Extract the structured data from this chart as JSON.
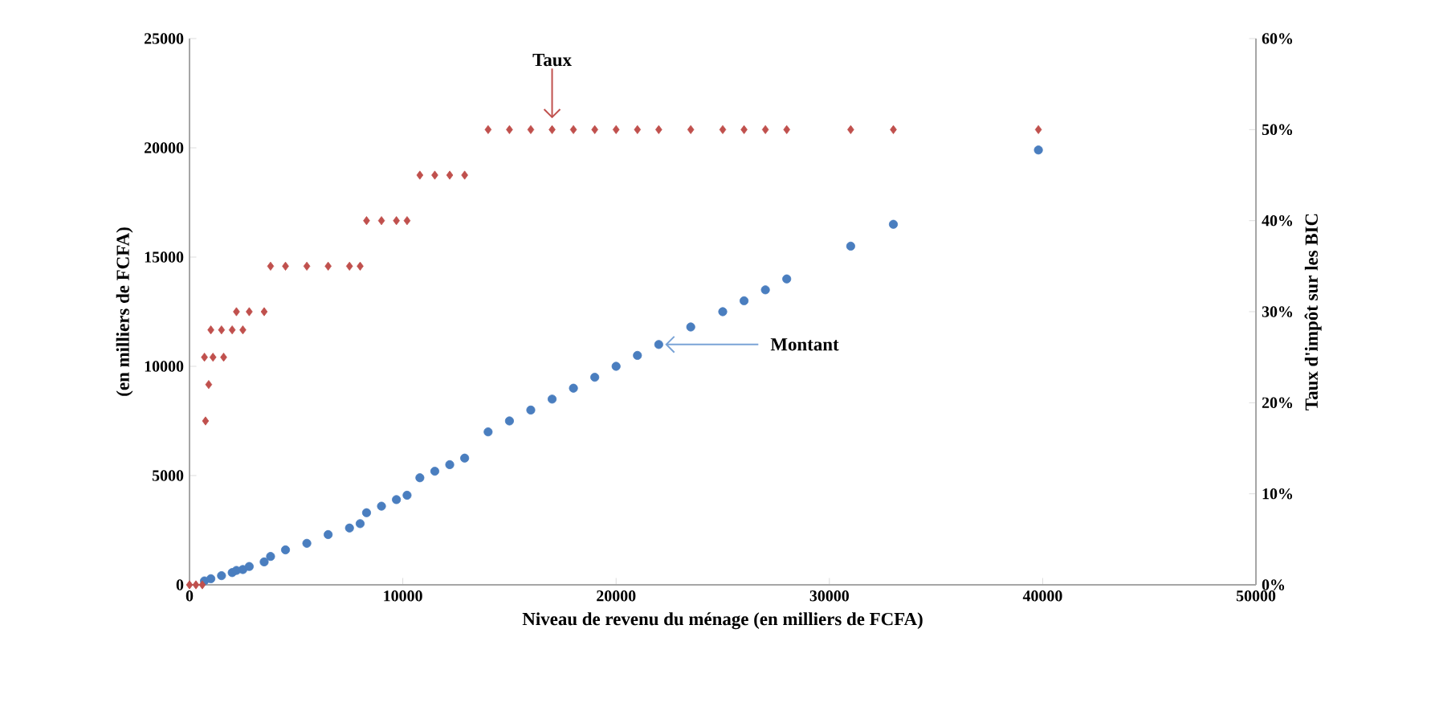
{
  "chart_data": {
    "type": "scatter",
    "xlabel": "Niveau de revenu du ménage (en milliers de FCFA)",
    "ylabel": "(en milliers de FCFA)",
    "y2label": "Taux d'impôt sur les  BIC",
    "xlim": [
      0,
      50000
    ],
    "xticks": [
      0,
      10000,
      20000,
      30000,
      40000,
      50000
    ],
    "ylim": [
      0,
      25000
    ],
    "yticks": [
      0,
      5000,
      10000,
      15000,
      20000,
      25000
    ],
    "y2lim": [
      0,
      60
    ],
    "y2ticks": [
      {
        "value": 0,
        "label": "0%"
      },
      {
        "value": 10,
        "label": "10%"
      },
      {
        "value": 20,
        "label": "20%"
      },
      {
        "value": 30,
        "label": "30%"
      },
      {
        "value": 40,
        "label": "40%"
      },
      {
        "value": 50,
        "label": "50%"
      },
      {
        "value": 60,
        "label": "60%"
      }
    ],
    "grid": false,
    "series": [
      {
        "color": "#c0504d",
        "axis": "y2",
        "marker": "diamond",
        "x": [
          0,
          300,
          600,
          750,
          900,
          700,
          1100,
          1600,
          1000,
          1500,
          2000,
          2500,
          2200,
          2800,
          3500,
          3800,
          4500,
          5500,
          6500,
          7500,
          8000,
          8300,
          9000,
          9700,
          10200,
          10800,
          11500,
          12200,
          12900,
          14000,
          15000,
          16000,
          17000,
          18000,
          19000,
          20000,
          21000,
          22000,
          23500,
          25000,
          26000,
          27000,
          28000,
          31000,
          33000,
          39800
        ],
        "values": [
          0,
          0,
          0,
          18,
          22,
          25,
          25,
          25,
          28,
          28,
          28,
          28,
          30,
          30,
          30,
          35,
          35,
          35,
          35,
          35,
          35,
          40,
          40,
          40,
          40,
          45,
          45,
          45,
          45,
          50,
          50,
          50,
          50,
          50,
          50,
          50,
          50,
          50,
          50,
          50,
          50,
          50,
          50,
          50,
          50,
          50
        ]
      },
      {
        "color": "#4a7ebf",
        "marker": "circle",
        "x": [
          700,
          1000,
          1500,
          2000,
          2500,
          2200,
          2800,
          3500,
          3800,
          4500,
          5500,
          6500,
          7500,
          8000,
          8300,
          9000,
          9700,
          10200,
          10800,
          11500,
          12200,
          12900,
          14000,
          15000,
          16000,
          17000,
          18000,
          19000,
          20000,
          21000,
          22000,
          23500,
          25000,
          26000,
          27000,
          28000,
          31000,
          33000,
          39800
        ],
        "values": [
          180,
          280,
          420,
          560,
          700,
          660,
          840,
          1050,
          1300,
          1600,
          1900,
          2300,
          2600,
          2800,
          3300,
          3600,
          3900,
          4100,
          4900,
          5200,
          5500,
          5800,
          7000,
          7500,
          8000,
          8500,
          9000,
          9500,
          10000,
          10500,
          11000,
          11800,
          12500,
          13000,
          13500,
          14000,
          15500,
          16500,
          19900
        ]
      }
    ],
    "annotations": [
      {
        "text": "Taux",
        "x": 17000,
        "y": 20833
      },
      {
        "text": "Montant",
        "x": 22000,
        "y": 11000
      }
    ]
  }
}
